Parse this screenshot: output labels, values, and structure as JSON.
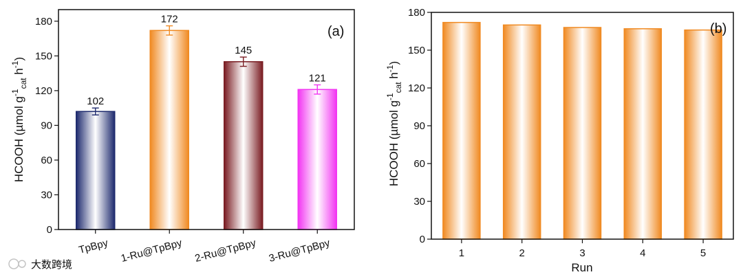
{
  "watermark": "大数跨境",
  "chart_data": [
    {
      "type": "bar",
      "panel_label": "(a)",
      "title": "",
      "xlabel": "",
      "ylabel": {
        "main": "HCOOH (µmol g",
        "sup1": "-1",
        "sub": "cat",
        "mid": " h",
        "sup2": "-1",
        "end": ")"
      },
      "ylim": [
        0,
        190
      ],
      "yticks": [
        0,
        30,
        60,
        90,
        120,
        150,
        180
      ],
      "categories": [
        "TpBpy",
        "1-Ru@TpBpy",
        "2-Ru@TpBpy",
        "3-Ru@TpBpy"
      ],
      "values": [
        102,
        172,
        145,
        121
      ],
      "errors": [
        3,
        4,
        4,
        4
      ],
      "value_labels": [
        "102",
        "172",
        "145",
        "121"
      ],
      "colors": [
        "#1e2a6e",
        "#f08a22",
        "#7a1c22",
        "#f235f2"
      ],
      "error_colors": [
        "#1e2a6e",
        "#f08a22",
        "#7a1c22",
        "#f235f2"
      ]
    },
    {
      "type": "bar",
      "panel_label": "(b)",
      "title": "",
      "xlabel": "Run",
      "ylabel": {
        "main": "HCOOH (µmol g",
        "sup1": "-1",
        "sub": "cat",
        "mid": " h",
        "sup2": "-1",
        "end": ")"
      },
      "ylim": [
        0,
        180
      ],
      "yticks": [
        0,
        30,
        60,
        90,
        120,
        150,
        180
      ],
      "categories": [
        "1",
        "2",
        "3",
        "4",
        "5"
      ],
      "values": [
        172,
        170,
        168,
        167,
        166
      ],
      "colors": [
        "#f08a22",
        "#f08a22",
        "#f08a22",
        "#f08a22",
        "#f08a22"
      ]
    }
  ]
}
